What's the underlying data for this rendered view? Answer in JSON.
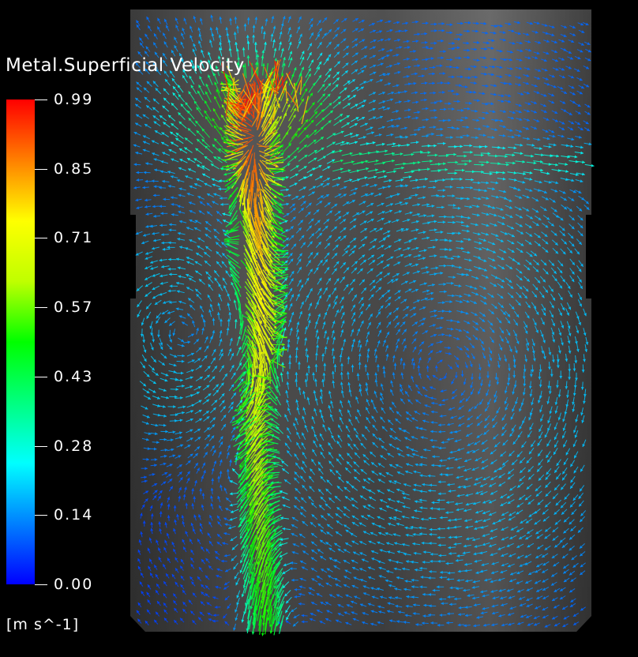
{
  "legend": {
    "title": "Metal.Superficial Velocity",
    "unit": "[m s^-1]",
    "ticks": [
      "0.99",
      "0.85",
      "0.71",
      "0.57",
      "0.43",
      "0.28",
      "0.14",
      "0.00"
    ],
    "min": 0.0,
    "max": 0.99,
    "colormap": [
      "#0000ff",
      "#0080ff",
      "#00ffff",
      "#00ff80",
      "#00ff00",
      "#c0ff00",
      "#ffff00",
      "#ff8000",
      "#ff0000"
    ]
  },
  "colors": {
    "background": "#000000",
    "vessel_fill": "#6e6e6e",
    "low_velocity_arrow": "#2f6fd8"
  }
}
